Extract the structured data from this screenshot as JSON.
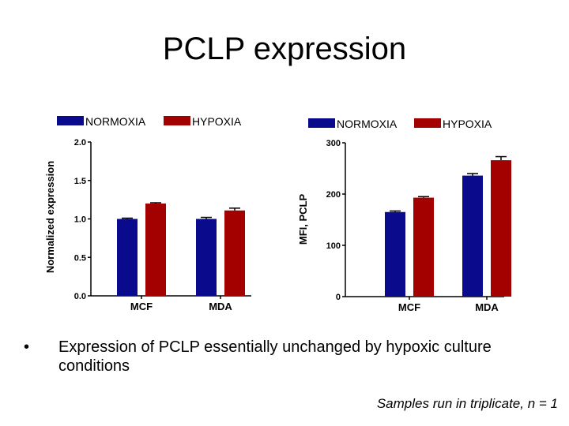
{
  "title": "PCLP expression",
  "bullet": {
    "marker": "•",
    "text": "Expression of PCLP essentially unchanged by hypoxic culture conditions"
  },
  "footnote": "Samples run in triplicate, n = 1",
  "colors": {
    "normoxia": "#0a0a8c",
    "hypoxia": "#a30000"
  },
  "chart_data": [
    {
      "type": "bar",
      "categories": [
        "MCF",
        "MDA"
      ],
      "series": [
        {
          "name": "NORMOXIA",
          "values": [
            1.0,
            1.0
          ],
          "errors": [
            0.01,
            0.02
          ]
        },
        {
          "name": "HYPOXIA",
          "values": [
            1.2,
            1.11
          ],
          "errors": [
            0.01,
            0.03
          ]
        }
      ],
      "ylabel": "Normalized expression",
      "ylim": [
        0,
        2.0
      ],
      "yticks": [
        "0.0",
        "0.5",
        "1.0",
        "1.5",
        "2.0"
      ],
      "legend": "top"
    },
    {
      "type": "bar",
      "categories": [
        "MCF",
        "MDA"
      ],
      "series": [
        {
          "name": "NORMOXIA",
          "values": [
            165,
            236
          ],
          "errors": [
            2,
            4
          ]
        },
        {
          "name": "HYPOXIA",
          "values": [
            193,
            266
          ],
          "errors": [
            2,
            7
          ]
        }
      ],
      "ylabel": "MFI, PCLP",
      "ylim": [
        0,
        300
      ],
      "yticks": [
        "0",
        "100",
        "200",
        "300"
      ],
      "legend": "top"
    }
  ]
}
